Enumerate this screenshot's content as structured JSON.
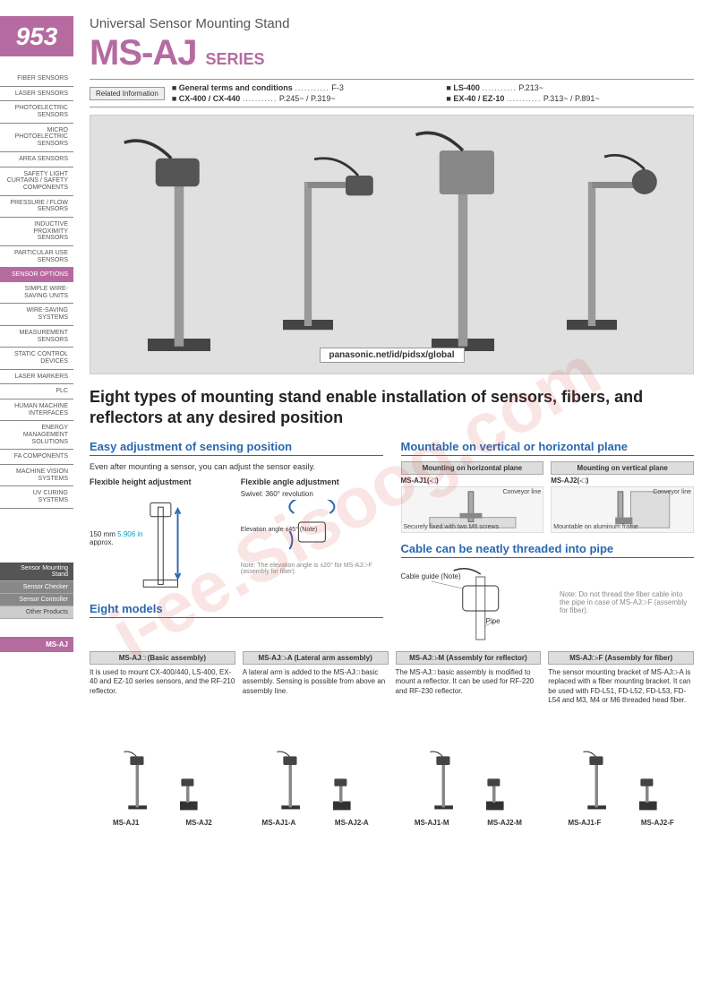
{
  "page_number": "953",
  "header": {
    "subtitle": "Universal Sensor Mounting Stand",
    "title_main": "MS-AJ",
    "title_sub": "SERIES"
  },
  "related_info": {
    "button": "Related Information",
    "links": [
      {
        "label": "General terms and conditions",
        "page": "F-3"
      },
      {
        "label": "LS-400",
        "page": "P.213~"
      },
      {
        "label": "CX-400 / CX-440",
        "page": "P.245~ / P.319~"
      },
      {
        "label": "EX-40 / EZ-10",
        "page": "P.313~ / P.891~"
      }
    ]
  },
  "sidebar": [
    "FIBER SENSORS",
    "LASER SENSORS",
    "PHOTOELECTRIC SENSORS",
    "MICRO PHOTOELECTRIC SENSORS",
    "AREA SENSORS",
    "SAFETY LIGHT CURTAINS / SAFETY COMPONENTS",
    "PRESSURE / FLOW SENSORS",
    "INDUCTIVE PROXIMITY SENSORS",
    "PARTICULAR USE SENSORS",
    "SENSOR OPTIONS",
    "SIMPLE WIRE-SAVING UNITS",
    "WIRE-SAVING SYSTEMS",
    "MEASUREMENT SENSORS",
    "STATIC CONTROL DEVICES",
    "LASER MARKERS",
    "PLC",
    "HUMAN MACHINE INTERFACES",
    "ENERGY MANAGEMENT SOLUTIONS",
    "FA COMPONENTS",
    "MACHINE VISION SYSTEMS",
    "UV CURING SYSTEMS"
  ],
  "sidebar_active_index": 9,
  "sidebar_sub": [
    {
      "label": "Sensor Mounting Stand",
      "state": "active"
    },
    {
      "label": "Sensor Checker",
      "state": "normal"
    },
    {
      "label": "Sensor Controller",
      "state": "normal"
    },
    {
      "label": "Other Products",
      "state": "light"
    }
  ],
  "sidebar_product": "MS-AJ",
  "hero": {
    "url": "panasonic.net/id/pidsx/global"
  },
  "main_heading": "Eight types of mounting stand enable installation of sensors, fibers, and reflectors at any desired position",
  "feature_easy": {
    "title": "Easy adjustment of sensing position",
    "body": "Even after mounting a sensor, you can adjust the sensor easily.",
    "height_label": "Flexible height adjustment",
    "height_dim": "150 mm",
    "height_dim_in": "5.906 in",
    "height_approx": "approx.",
    "angle_label": "Flexible angle adjustment",
    "swivel": "Swivel: 360° revolution",
    "elevation": "Elevation angle ±45° (Note)",
    "note": "Note: The elevation angle is ±20° for MS-AJ□-F (assembly for fiber)."
  },
  "feature_mount": {
    "title": "Mountable on vertical or horizontal plane",
    "horizontal": {
      "label": "Mounting on horizontal plane",
      "model": "MS-AJ1(-□)",
      "caption": "Securely fixed with two M6 screws",
      "conveyor": "Conveyor line"
    },
    "vertical": {
      "label": "Mounting on vertical plane",
      "model": "MS-AJ2(-□)",
      "caption": "Mountable on aluminum frame",
      "conveyor": "Conveyor line"
    }
  },
  "feature_cable": {
    "title": "Cable can be neatly threaded into pipe",
    "guide": "Cable guide (Note)",
    "pipe": "Pipe",
    "note": "Note: Do not thread the fiber cable into the pipe in case of MS-AJ□-F (assembly for fiber)."
  },
  "eight_models_title": "Eight models",
  "models": [
    {
      "header": "MS-AJ□ (Basic assembly)",
      "desc": "It is used to mount CX-400/440, LS-400, EX-40 and EZ-10 series sensors, and the RF-210 reflector.",
      "labels": [
        "MS-AJ1",
        "MS-AJ2"
      ]
    },
    {
      "header": "MS-AJ□-A (Lateral arm assembly)",
      "desc": "A lateral arm is added to the MS-AJ□ basic assembly. Sensing is possible from above an assembly line.",
      "labels": [
        "MS-AJ1-A",
        "MS-AJ2-A"
      ]
    },
    {
      "header": "MS-AJ□-M (Assembly for reflector)",
      "desc": "The MS-AJ□ basic assembly is modified to mount a reflector. It can be used for RF-220 and RF-230 reflector.",
      "labels": [
        "MS-AJ1-M",
        "MS-AJ2-M"
      ]
    },
    {
      "header": "MS-AJ□-F (Assembly for fiber)",
      "desc": "The sensor mounting bracket of MS-AJ□-A is replaced with a fiber mounting bracket. It can be used with FD-L51, FD-L52, FD-L53, FD-L54 and M3, M4 or M6 threaded head fiber.",
      "labels": [
        "MS-AJ1-F",
        "MS-AJ2-F"
      ]
    }
  ],
  "watermark": "i-ee.Sisoog.com",
  "colors": {
    "brand": "#b66ba0",
    "link_blue": "#2a68b0",
    "cyan": "#00a0c0"
  }
}
